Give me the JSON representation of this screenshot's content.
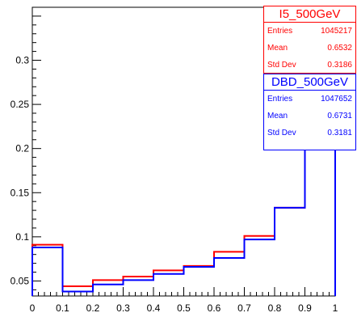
{
  "chart_data": {
    "type": "line",
    "style": "step-histogram",
    "title": "",
    "xlabel": "",
    "ylabel": "",
    "xlim": [
      0,
      1
    ],
    "ylim": [
      0.033,
      0.36
    ],
    "bin_edges": [
      0,
      0.1,
      0.2,
      0.3,
      0.4,
      0.5,
      0.6,
      0.7,
      0.8,
      0.9,
      1.0
    ],
    "x_ticks": [
      0,
      0.1,
      0.2,
      0.3,
      0.4,
      0.5,
      0.6,
      0.7,
      0.8,
      0.9,
      1
    ],
    "x_tick_labels": [
      "0",
      "0.1",
      "0.2",
      "0.3",
      "0.4",
      "0.5",
      "0.6",
      "0.7",
      "0.8",
      "0.9",
      "1"
    ],
    "y_ticks": [
      0.05,
      0.1,
      0.15,
      0.2,
      0.25,
      0.3
    ],
    "y_tick_labels": [
      "0.05",
      "0.1",
      "0.15",
      "0.2",
      "0.25",
      "0.3"
    ],
    "grid": false,
    "legend": "top-right",
    "series": [
      {
        "name": "I5_500GeV",
        "color": "#ff0000",
        "values": [
          0.091,
          0.044,
          0.051,
          0.055,
          0.062,
          0.067,
          0.083,
          0.101,
          0.133,
          0.305
        ],
        "stats": {
          "entries_label": "Entries",
          "entries": "1045217",
          "mean_label": "Mean",
          "mean": "0.6532",
          "std_label": "Std Dev",
          "std": "0.3186"
        }
      },
      {
        "name": "DBD_500GeV",
        "color": "#0000ff",
        "values": [
          0.088,
          0.038,
          0.046,
          0.051,
          0.058,
          0.066,
          0.076,
          0.097,
          0.133,
          0.327
        ],
        "stats": {
          "entries_label": "Entries",
          "entries": "1047652",
          "mean_label": "Mean",
          "mean": "0.6731",
          "std_label": "Std Dev",
          "std": "0.3181"
        }
      }
    ]
  }
}
